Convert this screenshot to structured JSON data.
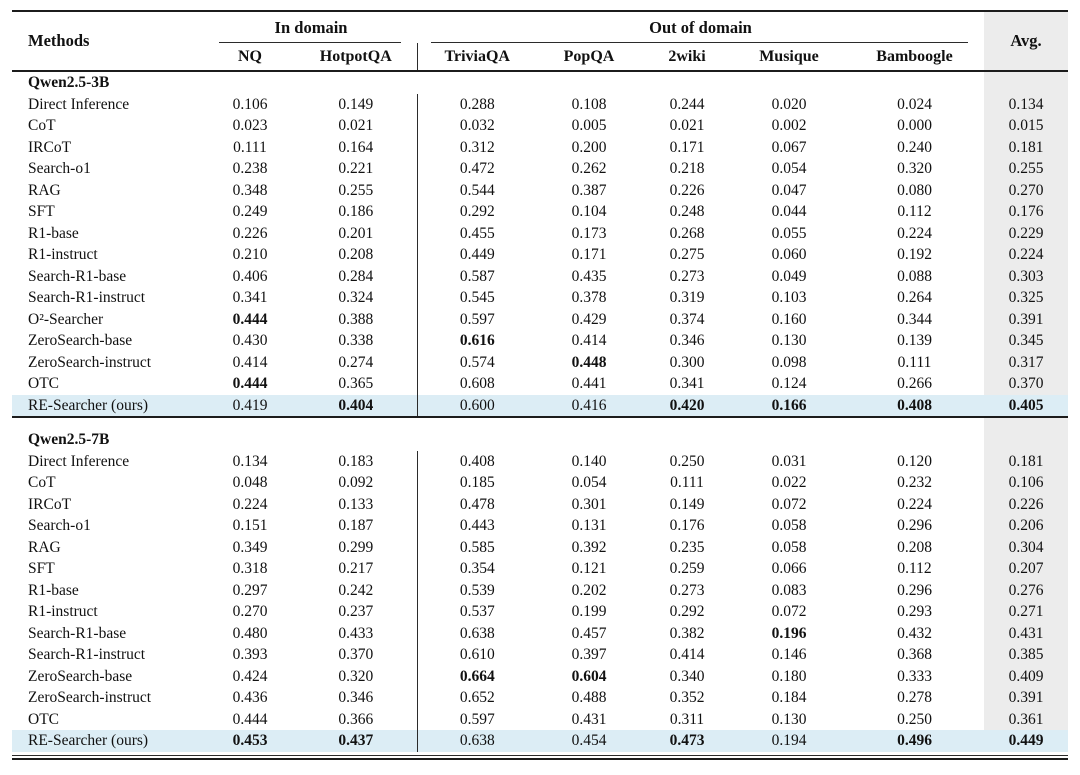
{
  "colors": {
    "highlight_row": "#dcedf5",
    "avg_col": "#ececec",
    "rule": "#1c1c1c"
  },
  "table": {
    "method_header": "Methods",
    "avg_header": "Avg.",
    "groups": [
      {
        "label": "In domain"
      },
      {
        "label": "Out of domain"
      }
    ],
    "columns": [
      "NQ",
      "HotpotQA",
      "TriviaQA",
      "PopQA",
      "2wiki",
      "Musique",
      "Bamboogle"
    ],
    "sections": [
      {
        "title": "Qwen2.5-3B",
        "rows": [
          {
            "method": "Direct Inference",
            "values": [
              "0.106",
              "0.149",
              "0.288",
              "0.108",
              "0.244",
              "0.020",
              "0.024",
              "0.134"
            ],
            "bold": [],
            "highlight": false
          },
          {
            "method": "CoT",
            "values": [
              "0.023",
              "0.021",
              "0.032",
              "0.005",
              "0.021",
              "0.002",
              "0.000",
              "0.015"
            ],
            "bold": [],
            "highlight": false
          },
          {
            "method": "IRCoT",
            "values": [
              "0.111",
              "0.164",
              "0.312",
              "0.200",
              "0.171",
              "0.067",
              "0.240",
              "0.181"
            ],
            "bold": [],
            "highlight": false
          },
          {
            "method": "Search-o1",
            "values": [
              "0.238",
              "0.221",
              "0.472",
              "0.262",
              "0.218",
              "0.054",
              "0.320",
              "0.255"
            ],
            "bold": [],
            "highlight": false
          },
          {
            "method": "RAG",
            "values": [
              "0.348",
              "0.255",
              "0.544",
              "0.387",
              "0.226",
              "0.047",
              "0.080",
              "0.270"
            ],
            "bold": [],
            "highlight": false
          },
          {
            "method": "SFT",
            "values": [
              "0.249",
              "0.186",
              "0.292",
              "0.104",
              "0.248",
              "0.044",
              "0.112",
              "0.176"
            ],
            "bold": [],
            "highlight": false
          },
          {
            "method": "R1-base",
            "values": [
              "0.226",
              "0.201",
              "0.455",
              "0.173",
              "0.268",
              "0.055",
              "0.224",
              "0.229"
            ],
            "bold": [],
            "highlight": false
          },
          {
            "method": "R1-instruct",
            "values": [
              "0.210",
              "0.208",
              "0.449",
              "0.171",
              "0.275",
              "0.060",
              "0.192",
              "0.224"
            ],
            "bold": [],
            "highlight": false
          },
          {
            "method": "Search-R1-base",
            "values": [
              "0.406",
              "0.284",
              "0.587",
              "0.435",
              "0.273",
              "0.049",
              "0.088",
              "0.303"
            ],
            "bold": [],
            "highlight": false
          },
          {
            "method": "Search-R1-instruct",
            "values": [
              "0.341",
              "0.324",
              "0.545",
              "0.378",
              "0.319",
              "0.103",
              "0.264",
              "0.325"
            ],
            "bold": [],
            "highlight": false
          },
          {
            "method": "O²-Searcher",
            "values": [
              "0.444",
              "0.388",
              "0.597",
              "0.429",
              "0.374",
              "0.160",
              "0.344",
              "0.391"
            ],
            "bold": [
              0
            ],
            "highlight": false
          },
          {
            "method": "ZeroSearch-base",
            "values": [
              "0.430",
              "0.338",
              "0.616",
              "0.414",
              "0.346",
              "0.130",
              "0.139",
              "0.345"
            ],
            "bold": [
              2
            ],
            "highlight": false
          },
          {
            "method": "ZeroSearch-instruct",
            "values": [
              "0.414",
              "0.274",
              "0.574",
              "0.448",
              "0.300",
              "0.098",
              "0.111",
              "0.317"
            ],
            "bold": [
              3
            ],
            "highlight": false
          },
          {
            "method": "OTC",
            "values": [
              "0.444",
              "0.365",
              "0.608",
              "0.441",
              "0.341",
              "0.124",
              "0.266",
              "0.370"
            ],
            "bold": [
              0
            ],
            "highlight": false
          },
          {
            "method": "RE-Searcher (ours)",
            "values": [
              "0.419",
              "0.404",
              "0.600",
              "0.416",
              "0.420",
              "0.166",
              "0.408",
              "0.405"
            ],
            "bold": [
              1,
              4,
              5,
              6,
              7
            ],
            "highlight": true
          }
        ]
      },
      {
        "title": "Qwen2.5-7B",
        "rows": [
          {
            "method": "Direct Inference",
            "values": [
              "0.134",
              "0.183",
              "0.408",
              "0.140",
              "0.250",
              "0.031",
              "0.120",
              "0.181"
            ],
            "bold": [],
            "highlight": false
          },
          {
            "method": "CoT",
            "values": [
              "0.048",
              "0.092",
              "0.185",
              "0.054",
              "0.111",
              "0.022",
              "0.232",
              "0.106"
            ],
            "bold": [],
            "highlight": false
          },
          {
            "method": "IRCoT",
            "values": [
              "0.224",
              "0.133",
              "0.478",
              "0.301",
              "0.149",
              "0.072",
              "0.224",
              "0.226"
            ],
            "bold": [],
            "highlight": false
          },
          {
            "method": "Search-o1",
            "values": [
              "0.151",
              "0.187",
              "0.443",
              "0.131",
              "0.176",
              "0.058",
              "0.296",
              "0.206"
            ],
            "bold": [],
            "highlight": false
          },
          {
            "method": "RAG",
            "values": [
              "0.349",
              "0.299",
              "0.585",
              "0.392",
              "0.235",
              "0.058",
              "0.208",
              "0.304"
            ],
            "bold": [],
            "highlight": false
          },
          {
            "method": "SFT",
            "values": [
              "0.318",
              "0.217",
              "0.354",
              "0.121",
              "0.259",
              "0.066",
              "0.112",
              "0.207"
            ],
            "bold": [],
            "highlight": false
          },
          {
            "method": "R1-base",
            "values": [
              "0.297",
              "0.242",
              "0.539",
              "0.202",
              "0.273",
              "0.083",
              "0.296",
              "0.276"
            ],
            "bold": [],
            "highlight": false
          },
          {
            "method": "R1-instruct",
            "values": [
              "0.270",
              "0.237",
              "0.537",
              "0.199",
              "0.292",
              "0.072",
              "0.293",
              "0.271"
            ],
            "bold": [],
            "highlight": false
          },
          {
            "method": "Search-R1-base",
            "values": [
              "0.480",
              "0.433",
              "0.638",
              "0.457",
              "0.382",
              "0.196",
              "0.432",
              "0.431"
            ],
            "bold": [
              5
            ],
            "highlight": false
          },
          {
            "method": "Search-R1-instruct",
            "values": [
              "0.393",
              "0.370",
              "0.610",
              "0.397",
              "0.414",
              "0.146",
              "0.368",
              "0.385"
            ],
            "bold": [],
            "highlight": false
          },
          {
            "method": "ZeroSearch-base",
            "values": [
              "0.424",
              "0.320",
              "0.664",
              "0.604",
              "0.340",
              "0.180",
              "0.333",
              "0.409"
            ],
            "bold": [
              2,
              3
            ],
            "highlight": false
          },
          {
            "method": "ZeroSearch-instruct",
            "values": [
              "0.436",
              "0.346",
              "0.652",
              "0.488",
              "0.352",
              "0.184",
              "0.278",
              "0.391"
            ],
            "bold": [],
            "highlight": false
          },
          {
            "method": "OTC",
            "values": [
              "0.444",
              "0.366",
              "0.597",
              "0.431",
              "0.311",
              "0.130",
              "0.250",
              "0.361"
            ],
            "bold": [],
            "highlight": false
          },
          {
            "method": "RE-Searcher (ours)",
            "values": [
              "0.453",
              "0.437",
              "0.638",
              "0.454",
              "0.473",
              "0.194",
              "0.496",
              "0.449"
            ],
            "bold": [
              0,
              1,
              4,
              6,
              7
            ],
            "highlight": true
          }
        ]
      }
    ]
  }
}
